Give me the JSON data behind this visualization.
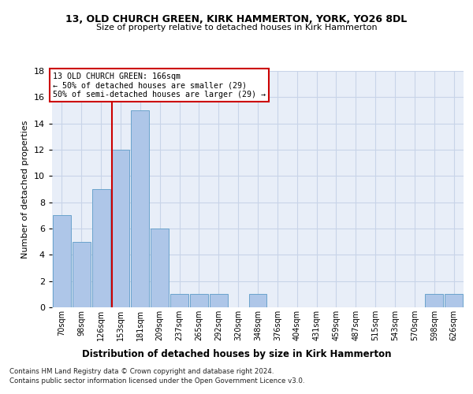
{
  "title1": "13, OLD CHURCH GREEN, KIRK HAMMERTON, YORK, YO26 8DL",
  "title2": "Size of property relative to detached houses in Kirk Hammerton",
  "xlabel": "Distribution of detached houses by size in Kirk Hammerton",
  "ylabel": "Number of detached properties",
  "footnote1": "Contains HM Land Registry data © Crown copyright and database right 2024.",
  "footnote2": "Contains public sector information licensed under the Open Government Licence v3.0.",
  "bin_labels": [
    "70sqm",
    "98sqm",
    "126sqm",
    "153sqm",
    "181sqm",
    "209sqm",
    "237sqm",
    "265sqm",
    "292sqm",
    "320sqm",
    "348sqm",
    "376sqm",
    "404sqm",
    "431sqm",
    "459sqm",
    "487sqm",
    "515sqm",
    "543sqm",
    "570sqm",
    "598sqm",
    "626sqm"
  ],
  "bar_values": [
    7,
    5,
    9,
    12,
    15,
    6,
    1,
    1,
    1,
    0,
    1,
    0,
    0,
    0,
    0,
    0,
    0,
    0,
    0,
    1,
    1
  ],
  "bar_color": "#aec6e8",
  "bar_edge_color": "#6ba3cc",
  "vline_color": "#cc0000",
  "vline_x_index": 3,
  "annotation_text": "13 OLD CHURCH GREEN: 166sqm\n← 50% of detached houses are smaller (29)\n50% of semi-detached houses are larger (29) →",
  "annotation_box_color": "#ffffff",
  "annotation_box_edge": "#cc0000",
  "ylim": [
    0,
    18
  ],
  "yticks": [
    0,
    2,
    4,
    6,
    8,
    10,
    12,
    14,
    16,
    18
  ],
  "grid_color": "#c8d4e8",
  "background_color": "#e8eef8"
}
